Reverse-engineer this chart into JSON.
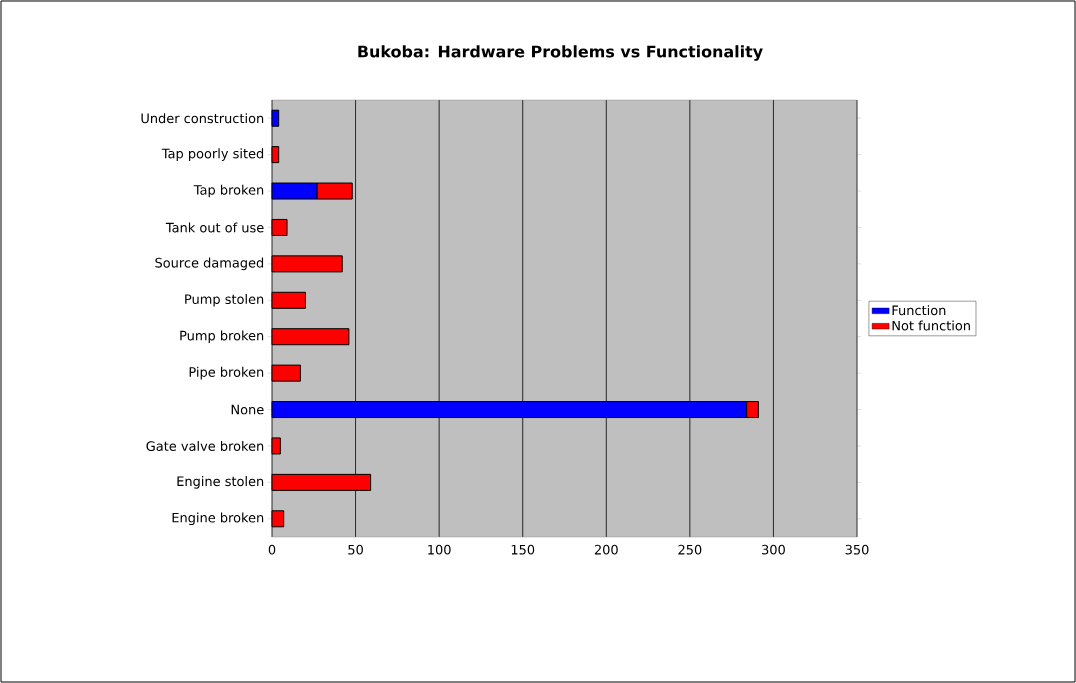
{
  "chart_data": {
    "type": "bar",
    "orientation": "horizontal",
    "stacked": true,
    "title": "Bukoba: Hardware Problems vs Functionality",
    "categories": [
      "Under construction",
      "Tap poorly sited",
      "Tap broken",
      "Tank out of use",
      "Source damaged",
      "Pump stolen",
      "Pump broken",
      "Pipe broken",
      "None",
      "Gate valve broken",
      "Engine stolen",
      "Engine broken"
    ],
    "series": [
      {
        "name": "Function",
        "color": "#0000ff",
        "values": [
          4,
          null,
          27,
          null,
          null,
          null,
          null,
          null,
          284,
          null,
          null,
          null
        ]
      },
      {
        "name": "Not function",
        "color": "#ff0000",
        "values": [
          null,
          4,
          21,
          9,
          42,
          20,
          46,
          17,
          7,
          5,
          59,
          7
        ]
      }
    ],
    "xlim": [
      0,
      350
    ],
    "xticks": [
      0,
      50,
      100,
      150,
      200,
      250,
      300,
      350
    ],
    "grid": "x",
    "legend": "right"
  }
}
